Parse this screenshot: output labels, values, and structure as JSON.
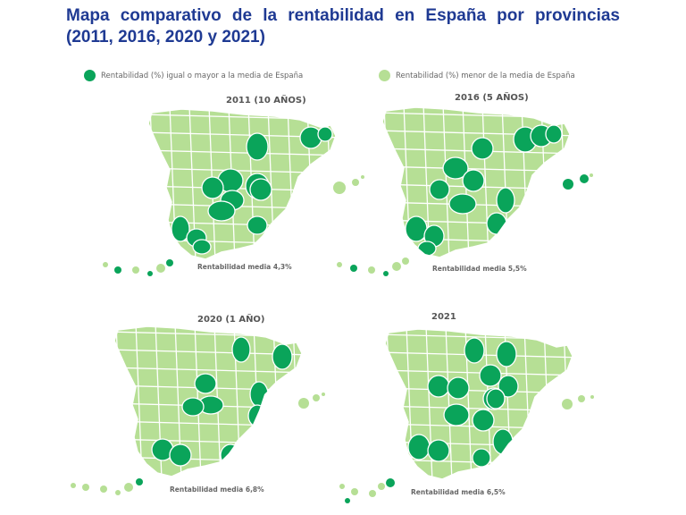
{
  "title": "Mapa comparativo de la rentabilidad en España por provincias (2011, 2016, 2020 y 2021)",
  "colors": {
    "above": "#0aa45a",
    "below": "#b6df95",
    "border": "#ffffff"
  },
  "legend": {
    "above": "Rentabilidad (%) igual o mayor a la media de España",
    "below": "Rentabilidad (%) menor de la media de España"
  },
  "maps": [
    {
      "title": "2011 (10 AÑOS)",
      "caption": "Rentabilidad media 4,3%"
    },
    {
      "title": "2016 (5 AÑOS)",
      "caption": "Rentabilidad media 5,5%"
    },
    {
      "title": "2020 (1 AÑO)",
      "caption": "Rentabilidad media 6,8%"
    },
    {
      "title": "2021",
      "caption": "Rentabilidad media 6,5%"
    }
  ]
}
